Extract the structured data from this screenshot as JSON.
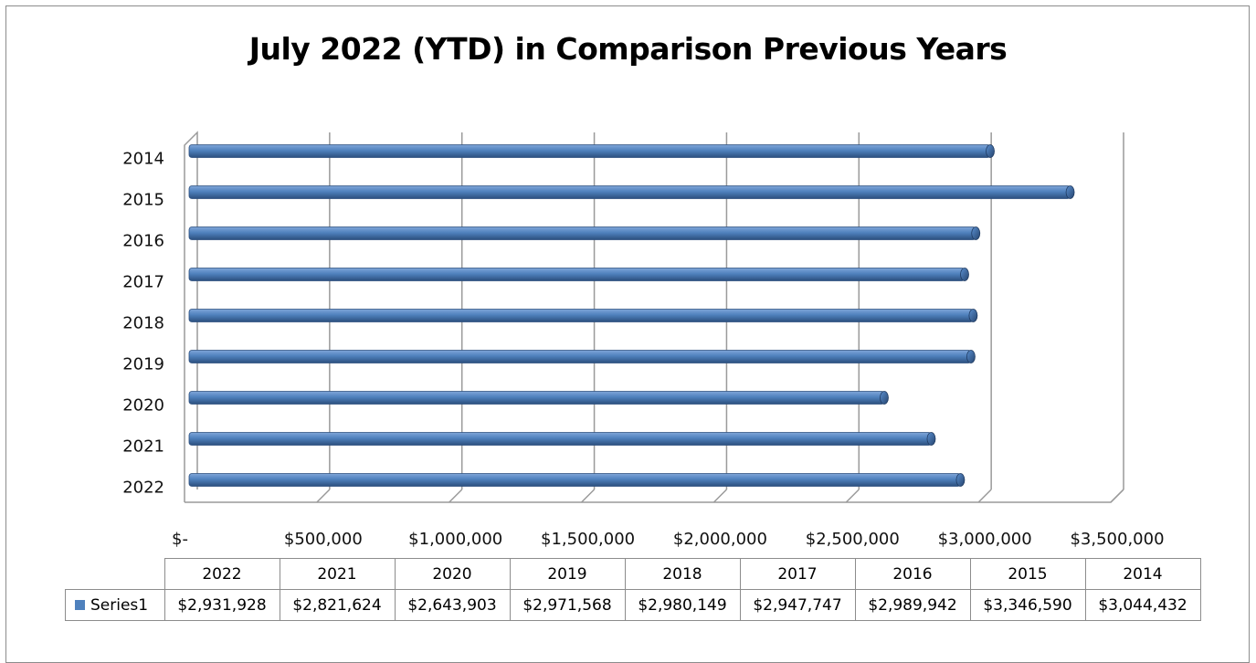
{
  "chart_data": {
    "type": "bar",
    "orientation": "horizontal",
    "title": "July 2022 (YTD) in Comparison Previous Years",
    "categories": [
      "2022",
      "2021",
      "2020",
      "2019",
      "2018",
      "2017",
      "2016",
      "2015",
      "2014"
    ],
    "series": [
      {
        "name": "Series1",
        "values": [
          2931928,
          2821624,
          2643903,
          2971568,
          2980149,
          2947747,
          2989942,
          3346590,
          3044432
        ],
        "labels": [
          "$2,931,928",
          "$2,821,624",
          "$2,643,903",
          "$2,971,568",
          "$2,980,149",
          "$2,947,747",
          "$2,989,942",
          "$3,346,590",
          "$3,044,432"
        ]
      }
    ],
    "xlim": [
      0,
      3500000
    ],
    "x_ticks": [
      0,
      500000,
      1000000,
      1500000,
      2000000,
      2500000,
      3000000,
      3500000
    ],
    "x_tick_labels": [
      "$-",
      "$500,000",
      "$1,000,000",
      "$1,500,000",
      "$2,000,000",
      "$2,500,000",
      "$3,000,000",
      "$3,500,000"
    ],
    "grid": "vertical",
    "legend": "data-table",
    "data_table": true,
    "bar_color": "#4f81bd"
  }
}
